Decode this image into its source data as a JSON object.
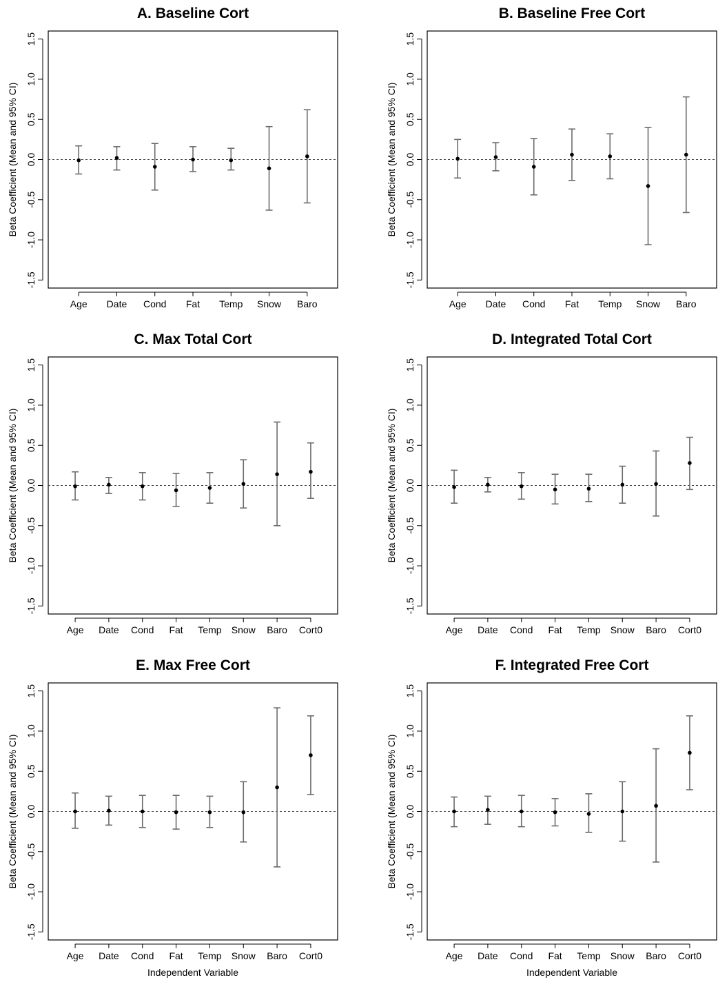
{
  "chart_data": [
    {
      "type": "scatter",
      "title": "A. Baseline Cort",
      "ylabel": "Beta Coefficient (Mean and 95% CI)",
      "xlabel": "",
      "ylim": [
        -1.6,
        1.6
      ],
      "yticks": [
        "1.5",
        "1.0",
        "0.5",
        "0.0",
        "-0.5",
        "-1.0",
        "-1.5"
      ],
      "reference_line": 0,
      "categories": [
        "Age",
        "Date",
        "Cond",
        "Fat",
        "Temp",
        "Snow",
        "Baro"
      ],
      "mean": [
        -0.01,
        0.02,
        -0.09,
        0.0,
        -0.01,
        -0.11,
        0.04
      ],
      "lower": [
        -0.18,
        -0.13,
        -0.38,
        -0.15,
        -0.13,
        -0.63,
        -0.54
      ],
      "upper": [
        0.17,
        0.16,
        0.2,
        0.16,
        0.14,
        0.41,
        0.62
      ]
    },
    {
      "type": "scatter",
      "title": "B. Baseline Free Cort",
      "ylabel": "Beta Coefficient (Mean and 95% CI)",
      "xlabel": "",
      "ylim": [
        -1.6,
        1.6
      ],
      "yticks": [
        "1.5",
        "1.0",
        "0.5",
        "0.0",
        "-0.5",
        "-1.0",
        "-1.5"
      ],
      "reference_line": 0,
      "categories": [
        "Age",
        "Date",
        "Cond",
        "Fat",
        "Temp",
        "Snow",
        "Baro"
      ],
      "mean": [
        0.01,
        0.03,
        -0.09,
        0.06,
        0.04,
        -0.33,
        0.06
      ],
      "lower": [
        -0.23,
        -0.14,
        -0.44,
        -0.26,
        -0.24,
        -1.06,
        -0.66
      ],
      "upper": [
        0.25,
        0.21,
        0.26,
        0.38,
        0.32,
        0.4,
        0.78
      ]
    },
    {
      "type": "scatter",
      "title": "C. Max Total Cort",
      "ylabel": "Beta Coefficient (Mean and 95% CI)",
      "xlabel": "",
      "ylim": [
        -1.6,
        1.6
      ],
      "yticks": [
        "1.5",
        "1.0",
        "0.5",
        "0.0",
        "-0.5",
        "-1.0",
        "-1.5"
      ],
      "reference_line": 0,
      "categories": [
        "Age",
        "Date",
        "Cond",
        "Fat",
        "Temp",
        "Snow",
        "Baro",
        "Cort0"
      ],
      "mean": [
        -0.01,
        0.01,
        -0.01,
        -0.06,
        -0.03,
        0.02,
        0.14,
        0.17
      ],
      "lower": [
        -0.18,
        -0.1,
        -0.18,
        -0.26,
        -0.22,
        -0.28,
        -0.5,
        -0.16
      ],
      "upper": [
        0.17,
        0.1,
        0.16,
        0.15,
        0.16,
        0.32,
        0.79,
        0.53
      ]
    },
    {
      "type": "scatter",
      "title": "D. Integrated Total Cort",
      "ylabel": "Beta Coefficient (Mean and 95% CI)",
      "xlabel": "",
      "ylim": [
        -1.6,
        1.6
      ],
      "yticks": [
        "1.5",
        "1.0",
        "0.5",
        "0.0",
        "-0.5",
        "-1.0",
        "-1.5"
      ],
      "reference_line": 0,
      "categories": [
        "Age",
        "Date",
        "Cond",
        "Fat",
        "Temp",
        "Snow",
        "Baro",
        "Cort0"
      ],
      "mean": [
        -0.02,
        0.01,
        -0.01,
        -0.05,
        -0.04,
        0.01,
        0.02,
        0.28
      ],
      "lower": [
        -0.22,
        -0.08,
        -0.17,
        -0.23,
        -0.2,
        -0.22,
        -0.38,
        -0.05
      ],
      "upper": [
        0.19,
        0.1,
        0.16,
        0.14,
        0.14,
        0.24,
        0.43,
        0.6
      ]
    },
    {
      "type": "scatter",
      "title": "E. Max Free Cort",
      "ylabel": "Beta Coefficient (Mean and 95% CI)",
      "xlabel": "Independent Variable",
      "ylim": [
        -1.6,
        1.6
      ],
      "yticks": [
        "1.5",
        "1.0",
        "0.5",
        "0.0",
        "-0.5",
        "-1.0",
        "-1.5"
      ],
      "reference_line": 0,
      "categories": [
        "Age",
        "Date",
        "Cond",
        "Fat",
        "Temp",
        "Snow",
        "Baro",
        "Cort0"
      ],
      "mean": [
        0.0,
        0.01,
        0.0,
        -0.01,
        -0.01,
        -0.01,
        0.3,
        0.7
      ],
      "lower": [
        -0.21,
        -0.17,
        -0.2,
        -0.22,
        -0.2,
        -0.38,
        -0.69,
        0.21
      ],
      "upper": [
        0.23,
        0.19,
        0.2,
        0.2,
        0.19,
        0.37,
        1.29,
        1.19
      ]
    },
    {
      "type": "scatter",
      "title": "F. Integrated Free Cort",
      "ylabel": "Beta Coefficient (Mean and 95% CI)",
      "xlabel": "Independent Variable",
      "ylim": [
        -1.6,
        1.6
      ],
      "yticks": [
        "1.5",
        "1.0",
        "0.5",
        "0.0",
        "-0.5",
        "-1.0",
        "-1.5"
      ],
      "reference_line": 0,
      "categories": [
        "Age",
        "Date",
        "Cond",
        "Fat",
        "Temp",
        "Snow",
        "Baro",
        "Cort0"
      ],
      "mean": [
        0.0,
        0.02,
        0.0,
        -0.01,
        -0.03,
        0.0,
        0.07,
        0.73
      ],
      "lower": [
        -0.19,
        -0.16,
        -0.19,
        -0.18,
        -0.26,
        -0.37,
        -0.63,
        0.27
      ],
      "upper": [
        0.18,
        0.19,
        0.2,
        0.16,
        0.22,
        0.37,
        0.78,
        1.19
      ]
    }
  ]
}
